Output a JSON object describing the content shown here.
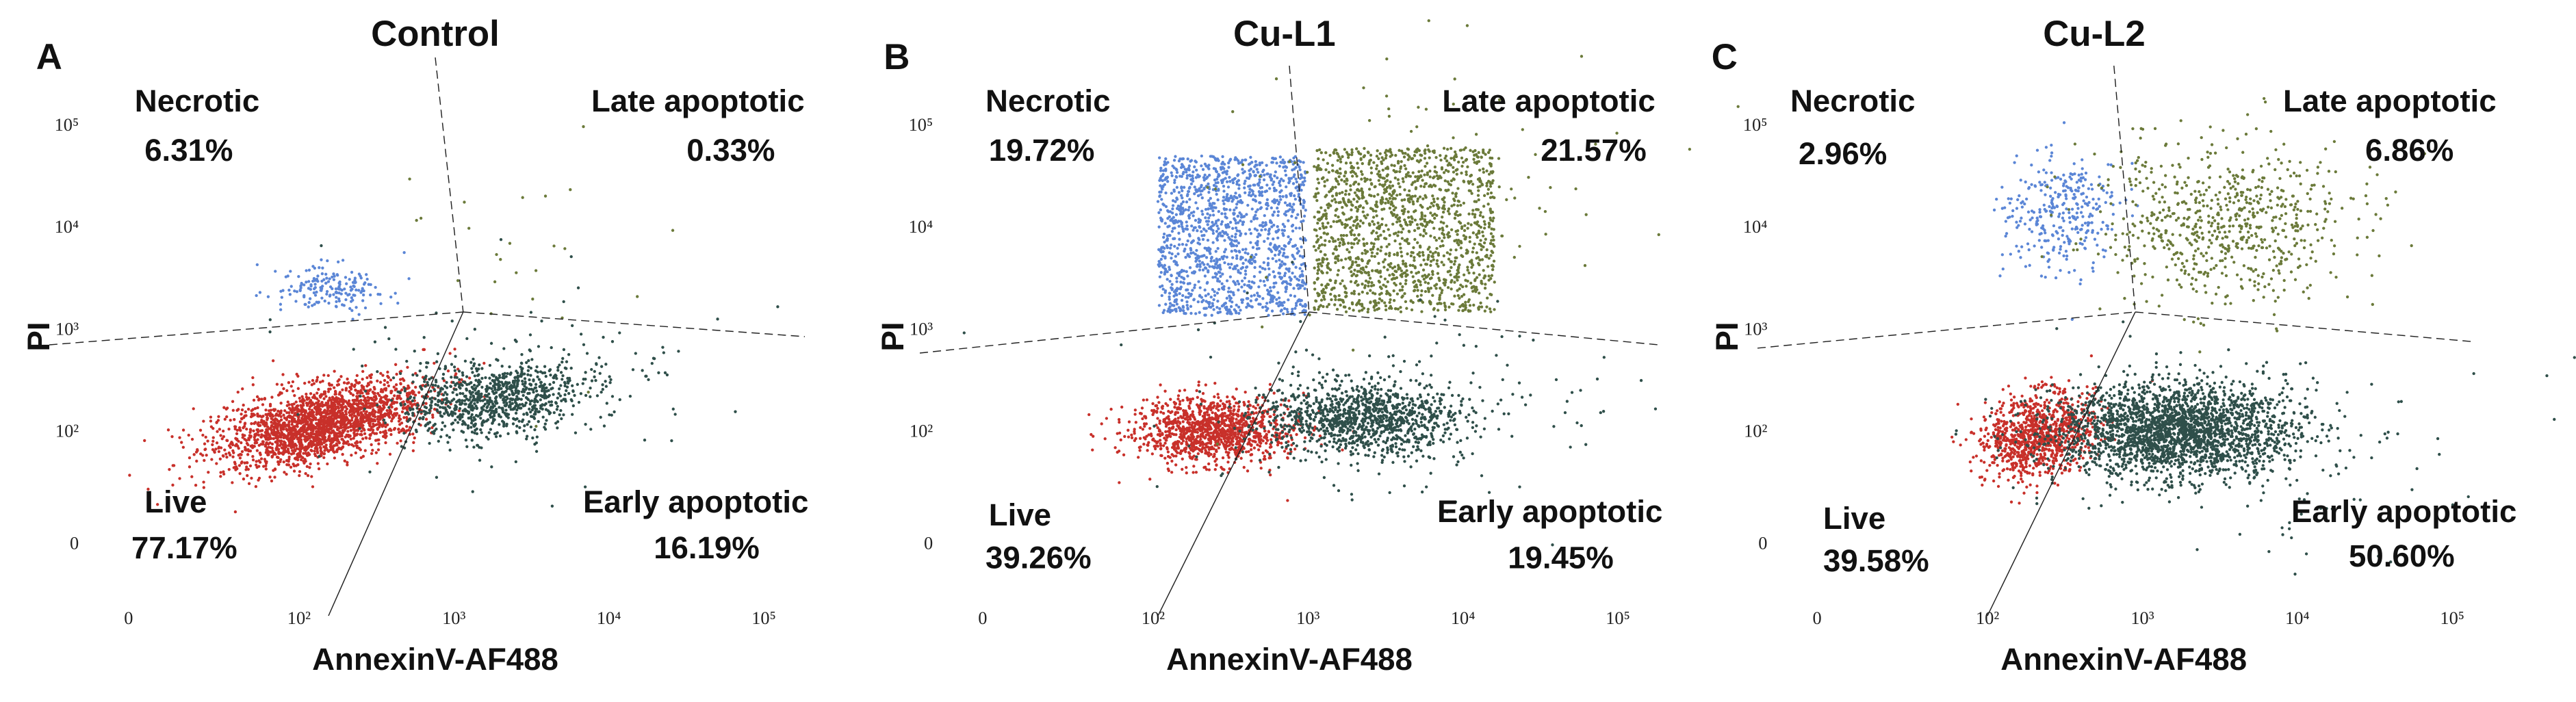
{
  "chart_data": [
    {
      "type": "scatter",
      "panel_label": "A",
      "title": "Control",
      "x_label": "AnnexinV-AF488",
      "y_label": "PI",
      "xlim": [
        0,
        300000
      ],
      "ylim": [
        0,
        300000
      ],
      "xticks": [
        0,
        {
          "value": 100,
          "label": "10²"
        },
        {
          "value": 1000,
          "label": "10³"
        },
        {
          "value": 10000,
          "label": "10⁴"
        },
        {
          "value": 100000,
          "label": "10⁵"
        }
      ],
      "yticks": [
        0,
        {
          "value": 100,
          "label": "10²"
        },
        {
          "value": 1000,
          "label": "10³"
        },
        {
          "value": 10000,
          "label": "10⁴"
        },
        {
          "value": 100000,
          "label": "10⁵"
        }
      ],
      "categories": [
        "Necrotic",
        "Late apoptotic",
        "Live",
        "Early apoptotic"
      ],
      "values": [
        6.31,
        0.33,
        77.17,
        16.19
      ],
      "value_labels": [
        "6.31%",
        "0.33%",
        "77.17%",
        "16.19%"
      ]
    },
    {
      "type": "scatter",
      "panel_label": "B",
      "title": "Cu-L1",
      "x_label": "AnnexinV-AF488",
      "y_label": "PI",
      "xlim": [
        0,
        300000
      ],
      "ylim": [
        0,
        300000
      ],
      "xticks": [
        0,
        {
          "value": 100,
          "label": "10²"
        },
        {
          "value": 1000,
          "label": "10³"
        },
        {
          "value": 10000,
          "label": "10⁴"
        },
        {
          "value": 100000,
          "label": "10⁵"
        }
      ],
      "yticks": [
        0,
        {
          "value": 100,
          "label": "10²"
        },
        {
          "value": 1000,
          "label": "10³"
        },
        {
          "value": 10000,
          "label": "10⁴"
        },
        {
          "value": 100000,
          "label": "10⁵"
        }
      ],
      "categories": [
        "Necrotic",
        "Late apoptotic",
        "Live",
        "Early apoptotic"
      ],
      "values": [
        19.72,
        21.57,
        39.26,
        19.45
      ],
      "value_labels": [
        "19.72%",
        "21.57%",
        "39.26%",
        "19.45%"
      ]
    },
    {
      "type": "scatter",
      "panel_label": "C",
      "title": "Cu-L2",
      "x_label": "AnnexinV-AF488",
      "y_label": "PI",
      "xlim": [
        0,
        300000
      ],
      "ylim": [
        0,
        300000
      ],
      "xticks": [
        0,
        {
          "value": 100,
          "label": "10²"
        },
        {
          "value": 1000,
          "label": "10³"
        },
        {
          "value": 10000,
          "label": "10⁴"
        },
        {
          "value": 100000,
          "label": "10⁵"
        }
      ],
      "yticks": [
        0,
        {
          "value": 100,
          "label": "10²"
        },
        {
          "value": 1000,
          "label": "10³"
        },
        {
          "value": 10000,
          "label": "10⁴"
        },
        {
          "value": 100000,
          "label": "10⁵"
        }
      ],
      "categories": [
        "Necrotic",
        "Late apoptotic",
        "Live",
        "Early apoptotic"
      ],
      "values": [
        2.96,
        6.86,
        39.58,
        50.6
      ],
      "value_labels": [
        "2.96%",
        "6.86%",
        "39.58%",
        "50.60%"
      ]
    }
  ]
}
